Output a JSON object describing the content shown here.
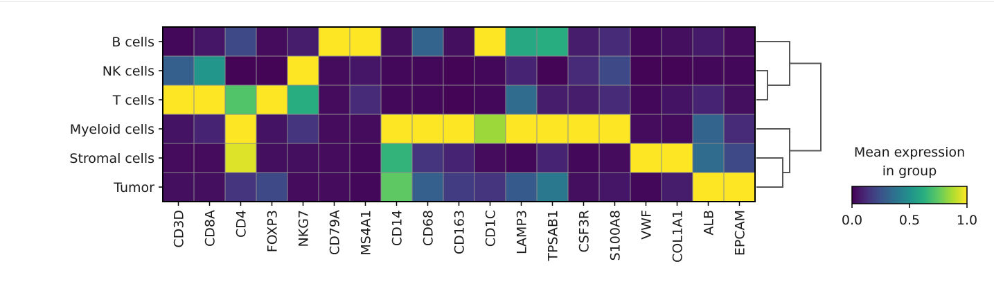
{
  "chart_data": {
    "type": "heatmap",
    "rows": [
      "B cells",
      "NK cells",
      "T cells",
      "Myeloid cells",
      "Stromal cells",
      "Tumor"
    ],
    "columns": [
      "CD3D",
      "CD8A",
      "CD4",
      "FOXP3",
      "NKG7",
      "CD79A",
      "MS4A1",
      "CD14",
      "CD68",
      "CD163",
      "CD1C",
      "LAMP3",
      "TPSAB1",
      "CSF3R",
      "S100A8",
      "VWF",
      "COL1A1",
      "ALB",
      "EPCAM"
    ],
    "values": [
      [
        0.02,
        0.06,
        0.22,
        0.03,
        0.08,
        1.0,
        1.0,
        0.04,
        0.32,
        0.04,
        1.0,
        0.6,
        0.62,
        0.08,
        0.12,
        0.02,
        0.04,
        0.07,
        0.03
      ],
      [
        0.3,
        0.52,
        0.01,
        0.01,
        1.0,
        0.03,
        0.06,
        0.02,
        0.02,
        0.01,
        0.02,
        0.1,
        0.01,
        0.12,
        0.22,
        0.01,
        0.01,
        0.02,
        0.02
      ],
      [
        1.0,
        1.0,
        0.72,
        1.0,
        0.62,
        0.03,
        0.12,
        0.02,
        0.02,
        0.01,
        0.02,
        0.35,
        0.08,
        0.08,
        0.12,
        0.02,
        0.05,
        0.1,
        0.04
      ],
      [
        0.05,
        0.1,
        1.0,
        0.05,
        0.15,
        0.03,
        0.03,
        1.0,
        1.0,
        1.0,
        0.85,
        1.0,
        1.0,
        1.0,
        1.0,
        0.03,
        0.03,
        0.32,
        0.12
      ],
      [
        0.03,
        0.03,
        0.95,
        0.04,
        0.04,
        0.03,
        0.02,
        0.65,
        0.15,
        0.1,
        0.03,
        0.02,
        0.1,
        0.02,
        0.03,
        1.0,
        1.0,
        0.35,
        0.22
      ],
      [
        0.04,
        0.04,
        0.15,
        0.22,
        0.03,
        0.03,
        0.02,
        0.75,
        0.3,
        0.18,
        0.15,
        0.28,
        0.4,
        0.04,
        0.06,
        0.02,
        0.08,
        1.0,
        1.0
      ]
    ],
    "row_dendrogram": {
      "merge_order": [
        [
          "NK cells",
          "T cells"
        ],
        [
          "Stromal cells",
          "Tumor"
        ],
        [
          "B cells",
          "NK cells + T cells"
        ],
        [
          "Myeloid cells",
          "Stromal cells + Tumor"
        ],
        [
          "B cells + NK cells + T cells",
          "Myeloid cells + Stromal cells + Tumor"
        ]
      ]
    },
    "colorbar": {
      "title_line1": "Mean expression",
      "title_line2": "in group",
      "ticks": [
        "0.0",
        "0.5",
        "1.0"
      ],
      "range": [
        0,
        1
      ],
      "colormap": "viridis"
    },
    "grid": true
  }
}
